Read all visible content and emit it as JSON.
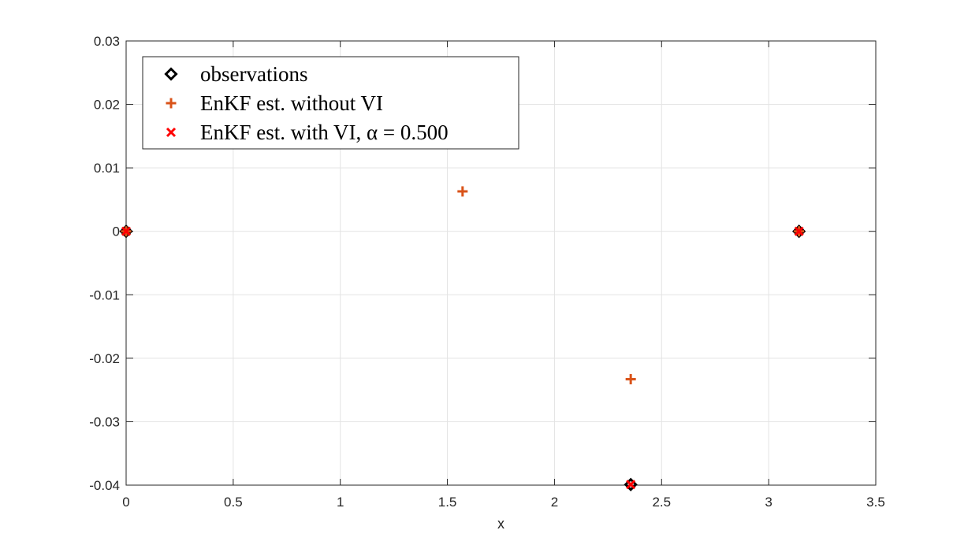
{
  "chart_data": {
    "type": "scatter",
    "title": "",
    "xlabel": "x",
    "ylabel": "",
    "xlim": [
      0,
      3.5
    ],
    "ylim": [
      -0.04,
      0.03
    ],
    "xticks": [
      0,
      0.5,
      1,
      1.5,
      2,
      2.5,
      3,
      3.5
    ],
    "yticks": [
      -0.04,
      -0.03,
      -0.02,
      -0.01,
      0,
      0.01,
      0.02,
      0.03
    ],
    "xtick_labels": [
      "0",
      "0.5",
      "1",
      "1.5",
      "2",
      "2.5",
      "3",
      "3.5"
    ],
    "ytick_labels": [
      "-0.04",
      "-0.03",
      "-0.02",
      "-0.01",
      "0",
      "0.01",
      "0.02",
      "0.03"
    ],
    "grid": true,
    "legend_position": "top-left",
    "series": [
      {
        "name": "observations",
        "marker": "diamond",
        "color": "#000000",
        "x": [
          0,
          2.356,
          3.1416
        ],
        "y": [
          0,
          -0.0399,
          0
        ]
      },
      {
        "name": "EnKF est. without VI",
        "marker": "plus",
        "color": "#D95319",
        "x": [
          0,
          1.5708,
          2.356,
          3.1416
        ],
        "y": [
          0,
          0.0063,
          -0.0233,
          0
        ]
      },
      {
        "name": "EnKF est. with VI, α = 0.500",
        "marker": "x",
        "color": "#FF0000",
        "x": [
          0,
          2.356,
          3.1416
        ],
        "y": [
          0,
          -0.0399,
          0
        ]
      }
    ]
  }
}
